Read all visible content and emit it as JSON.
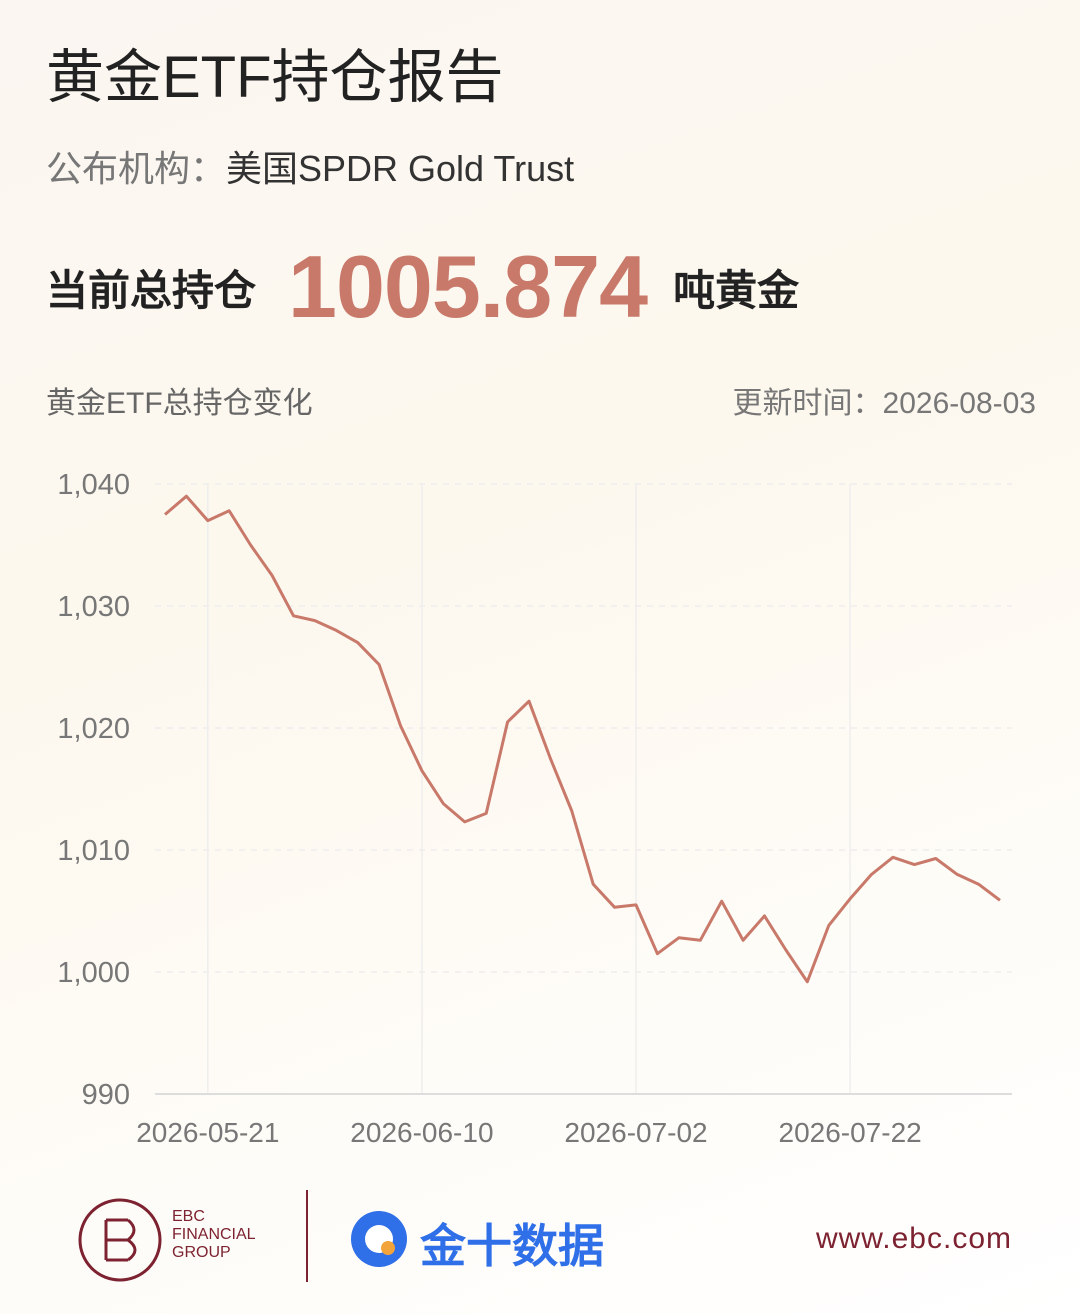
{
  "header": {
    "title": "黄金ETF持仓报告",
    "publisher_label": "公布机构：",
    "publisher": "美国SPDR Gold Trust",
    "holding_label": "当前总持仓",
    "holding": 1005.874,
    "holding_unit": "吨黄金"
  },
  "chart_header": {
    "title": "黄金ETF总持仓变化",
    "updated_label": "更新时间：",
    "updated": "2026-08-03"
  },
  "chart_data": {
    "type": "line",
    "categories": [
      null,
      null,
      "2026-05-21",
      null,
      null,
      null,
      null,
      null,
      null,
      null,
      null,
      null,
      "2026-06-10",
      null,
      null,
      null,
      null,
      null,
      null,
      null,
      null,
      null,
      "2026-07-02",
      null,
      null,
      null,
      null,
      null,
      null,
      null,
      null,
      null,
      "2026-07-22",
      null,
      null,
      null,
      null,
      null,
      null,
      null
    ],
    "series": [
      {
        "name": "黄金ETF总持仓",
        "color": "#c8796a",
        "values": [
          1037.5,
          1039,
          1037,
          1037.8,
          1035,
          1032.5,
          1029.2,
          1028.8,
          1028,
          1027,
          1025.2,
          1020.2,
          1016.5,
          1013.8,
          1012.3,
          1013,
          1020.5,
          1022.2,
          1017.5,
          1013.2,
          1007.2,
          1005.3,
          1005.5,
          1001.5,
          1002.8,
          1002.6,
          1005.8,
          1002.6,
          1004.6,
          1001.8,
          999.2,
          1003.8,
          1006,
          1008,
          1009.4,
          1008.8,
          1009.3,
          1008,
          1007.2,
          1005.874
        ]
      }
    ],
    "ylim": [
      990,
      1040
    ],
    "yticks": [
      990,
      {
        "value": 1000,
        "label": "1,000"
      },
      {
        "value": 1010,
        "label": "1,010"
      },
      {
        "value": 1020,
        "label": "1,020"
      },
      {
        "value": 1030,
        "label": "1,030"
      },
      {
        "value": 1040,
        "label": "1,040"
      }
    ],
    "grid": true
  },
  "footer": {
    "ebc_1": "EBC",
    "ebc_2": "FINANCIAL",
    "ebc_3": "GROUP",
    "jin10": "金十数据",
    "url": "www.ebc.com"
  }
}
